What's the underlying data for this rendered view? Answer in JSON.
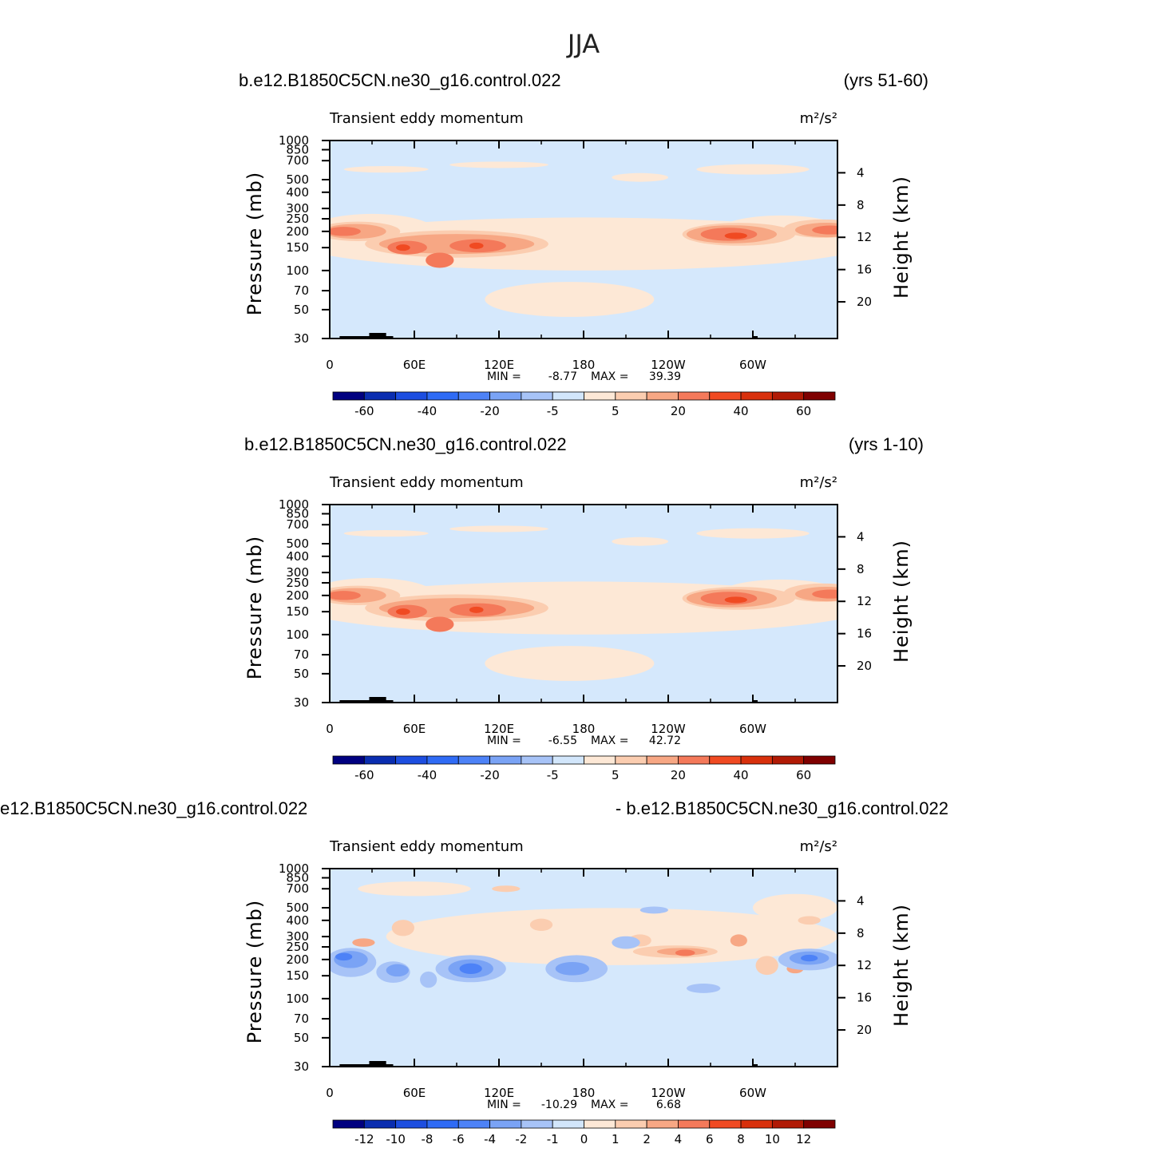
{
  "figure_title": "JJA",
  "chart_data": [
    {
      "type": "heatmap",
      "run_left": "b.e12.B1850C5CN.ne30_g16.control.022",
      "run_right": "(yrs 51-60)",
      "variable": "Transient eddy momentum",
      "units": "m²/s²",
      "xlabel": "",
      "ylabel": "Pressure (mb)",
      "ylabel_right": "Height (km)",
      "x_ticks": [
        "0",
        "60E",
        "120E",
        "180",
        "120W",
        "60W"
      ],
      "x_range": [
        0,
        360
      ],
      "y_ticks": [
        "30",
        "50",
        "70",
        "100",
        "150",
        "200",
        "250",
        "300",
        "400",
        "500",
        "700",
        "850",
        "1000"
      ],
      "y_range_mb": [
        1000,
        30
      ],
      "height_ticks": [
        "20",
        "16",
        "12",
        "8",
        "4"
      ],
      "min_label": "MIN =",
      "min_value": "-8.77",
      "max_label": "MAX =",
      "max_value": "39.39",
      "colorbar_labels": [
        "-60",
        "-40",
        "-20",
        "-5",
        "5",
        "20",
        "40",
        "60"
      ]
    },
    {
      "type": "heatmap",
      "run_left": "b.e12.B1850C5CN.ne30_g16.control.022",
      "run_right": "(yrs 1-10)",
      "variable": "Transient eddy momentum",
      "units": "m²/s²",
      "xlabel": "",
      "ylabel": "Pressure (mb)",
      "ylabel_right": "Height (km)",
      "x_ticks": [
        "0",
        "60E",
        "120E",
        "180",
        "120W",
        "60W"
      ],
      "x_range": [
        0,
        360
      ],
      "y_ticks": [
        "30",
        "50",
        "70",
        "100",
        "150",
        "200",
        "250",
        "300",
        "400",
        "500",
        "700",
        "850",
        "1000"
      ],
      "y_range_mb": [
        1000,
        30
      ],
      "height_ticks": [
        "20",
        "16",
        "12",
        "8",
        "4"
      ],
      "min_label": "MIN =",
      "min_value": "-6.55",
      "max_label": "MAX =",
      "max_value": "42.72",
      "colorbar_labels": [
        "-60",
        "-40",
        "-20",
        "-5",
        "5",
        "20",
        "40",
        "60"
      ]
    },
    {
      "type": "heatmap",
      "run_left": "e12.B1850C5CN.ne30_g16.control.022",
      "run_right": "- b.e12.B1850C5CN.ne30_g16.control.022",
      "variable": "Transient eddy momentum",
      "units": "m²/s²",
      "xlabel": "",
      "ylabel": "Pressure (mb)",
      "ylabel_right": "Height (km)",
      "x_ticks": [
        "0",
        "60E",
        "120E",
        "180",
        "120W",
        "60W"
      ],
      "x_range": [
        0,
        360
      ],
      "y_ticks": [
        "30",
        "50",
        "70",
        "100",
        "150",
        "200",
        "250",
        "300",
        "400",
        "500",
        "700",
        "850",
        "1000"
      ],
      "y_range_mb": [
        1000,
        30
      ],
      "height_ticks": [
        "20",
        "16",
        "12",
        "8",
        "4"
      ],
      "min_label": "MIN =",
      "min_value": "-10.29",
      "max_label": "MAX =",
      "max_value": "6.68",
      "colorbar_labels": [
        "-12",
        "-10",
        "-8",
        "-6",
        "-4",
        "-2",
        "-1",
        "0",
        "1",
        "2",
        "4",
        "6",
        "8",
        "10",
        "12"
      ]
    }
  ],
  "colors": {
    "scale": [
      "#000080",
      "#0a2db0",
      "#1d4ee0",
      "#2f6bf5",
      "#4d82f7",
      "#7aa3f5",
      "#a7c3f7",
      "#d2e6fb",
      "#fde8d6",
      "#fbcdb0",
      "#f7a784",
      "#f4795a",
      "#f04a22",
      "#d8300c",
      "#b11a05",
      "#7f0000"
    ],
    "background": "#d5e8fc",
    "light_pos": "#fde8d6"
  }
}
